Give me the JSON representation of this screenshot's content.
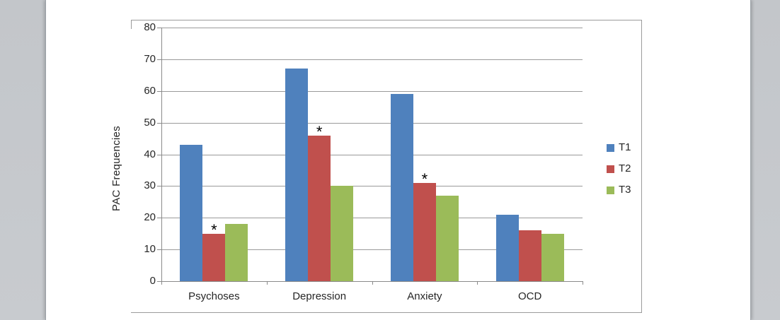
{
  "document": {
    "page_background": "#ffffff",
    "canvas_background": "#c6c9cd"
  },
  "chart_data": {
    "type": "bar",
    "title": "",
    "xlabel": "",
    "ylabel": "PAC Frequencies",
    "ylim": [
      0,
      80
    ],
    "yticks": [
      0,
      10,
      20,
      30,
      40,
      50,
      60,
      70,
      80
    ],
    "grid": true,
    "categories": [
      "Psychoses",
      "Depression",
      "Anxiety",
      "OCD"
    ],
    "series": [
      {
        "name": "T1",
        "color": "#4f81bd",
        "values": [
          43,
          67,
          59,
          21
        ]
      },
      {
        "name": "T2",
        "color": "#c0504d",
        "values": [
          15,
          46,
          31,
          16
        ]
      },
      {
        "name": "T3",
        "color": "#9bbb59",
        "values": [
          18,
          30,
          27,
          15
        ]
      }
    ],
    "annotations": [
      {
        "series": "T2",
        "category": "Psychoses",
        "text": "*"
      },
      {
        "series": "T2",
        "category": "Depression",
        "text": "*"
      },
      {
        "series": "T2",
        "category": "Anxiety",
        "text": "*"
      }
    ],
    "legend": {
      "position": "right",
      "entries": [
        "T1",
        "T2",
        "T3"
      ]
    },
    "colors": {
      "gridline": "#9a9a9a",
      "axis": "#8a8a8a",
      "frame_border": "#9b9b9b",
      "text": "#262626"
    }
  }
}
